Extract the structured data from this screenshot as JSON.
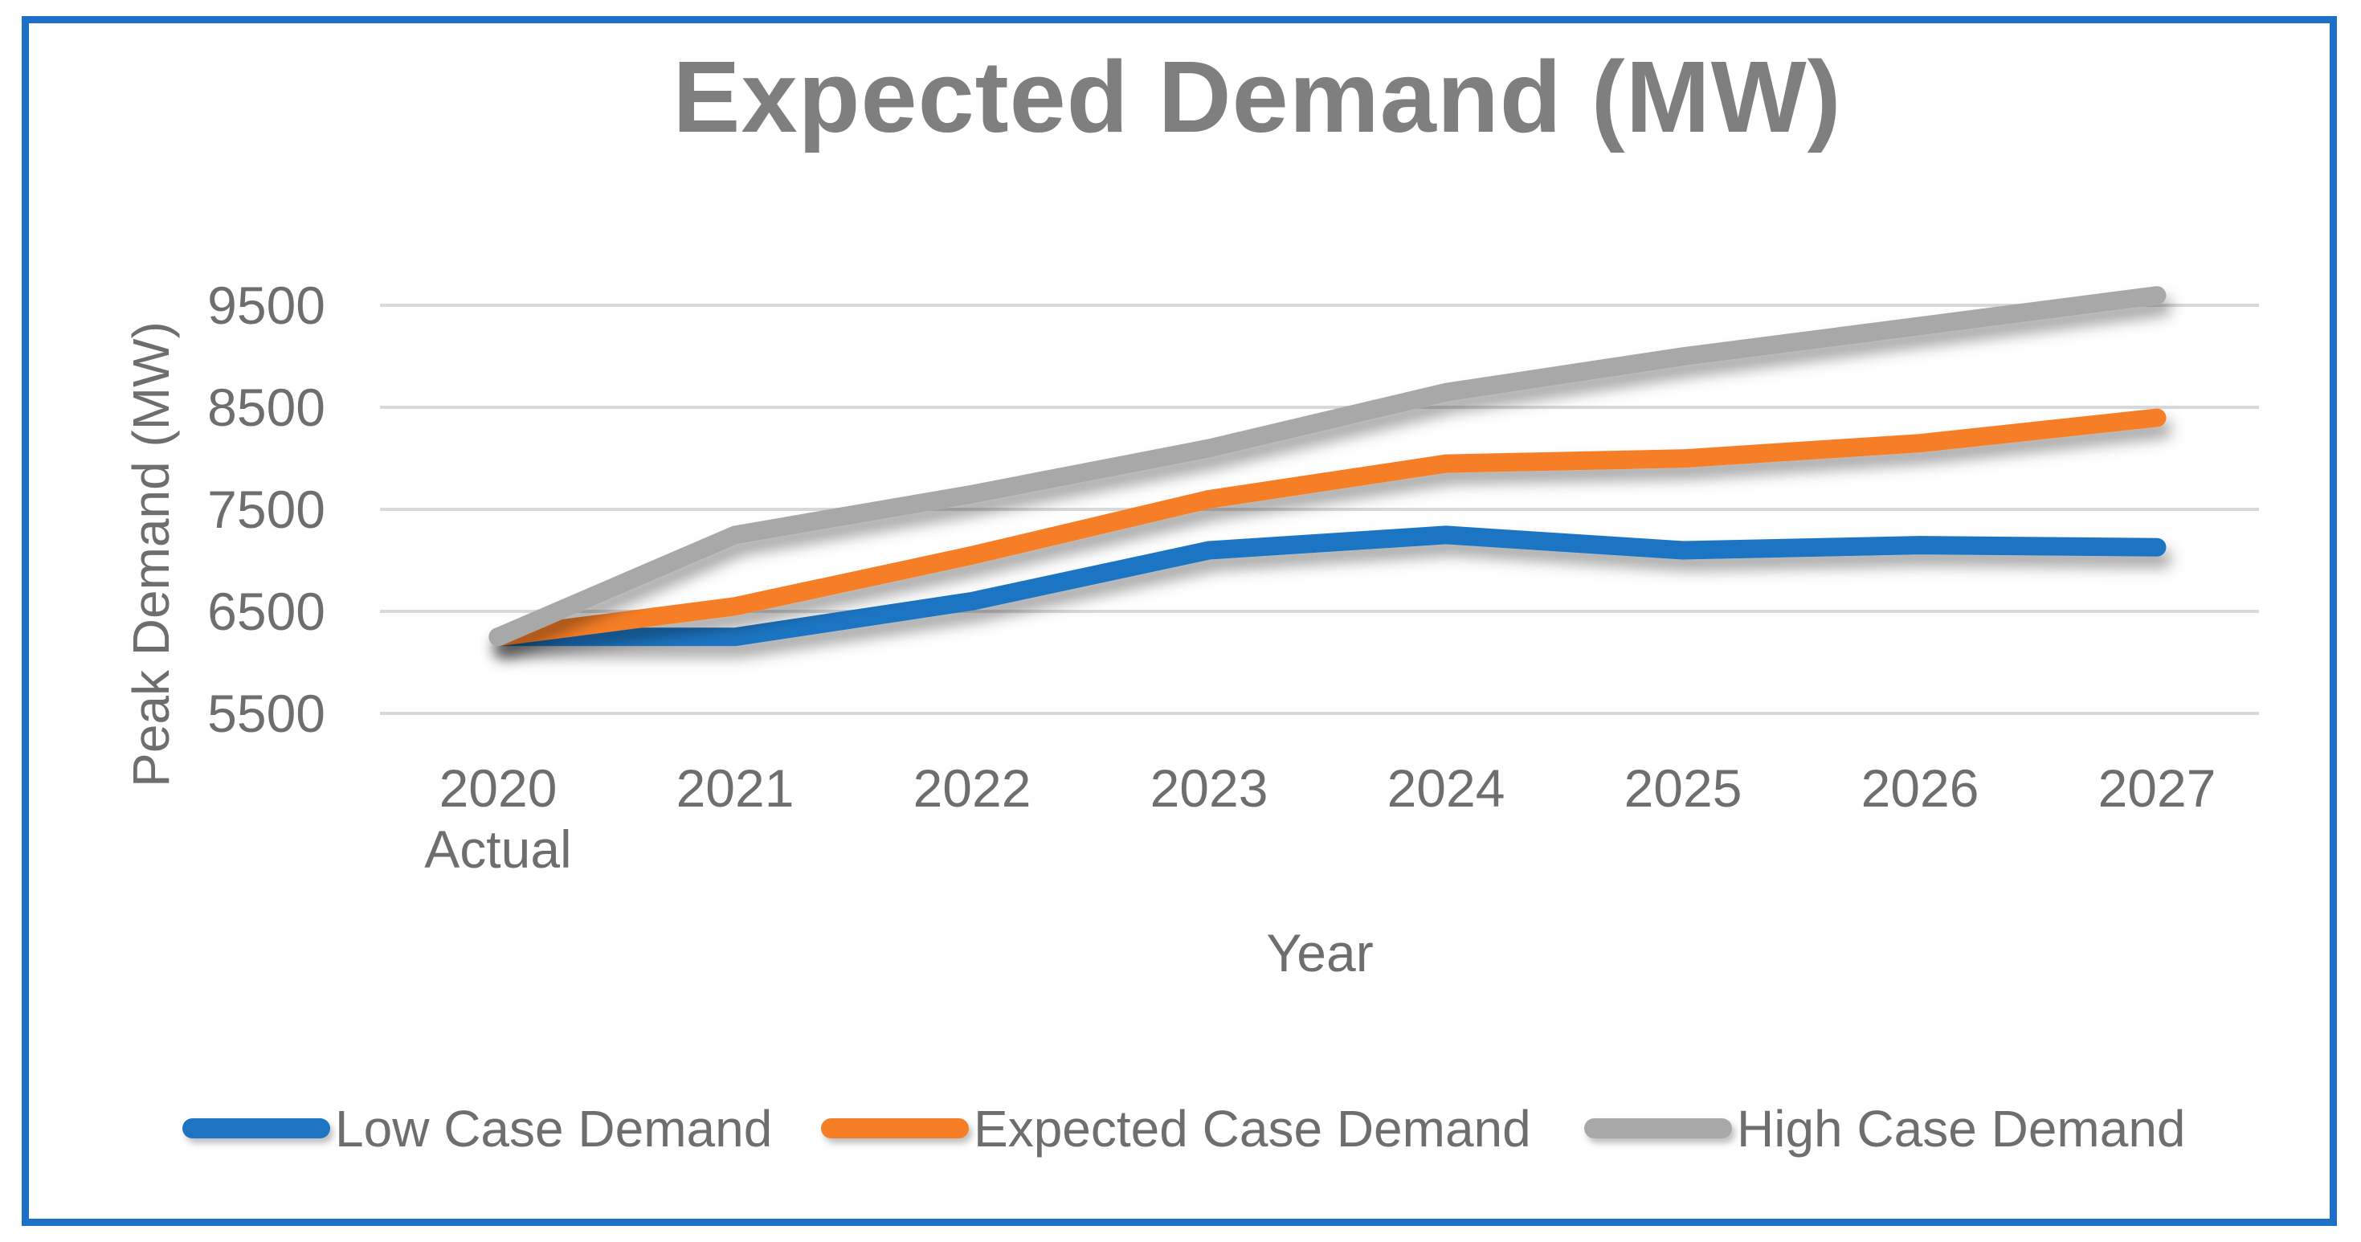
{
  "title": "Expected Demand (MW)",
  "x_axis": {
    "title": "Year",
    "tick_labels": [
      {
        "line1": "2020",
        "line2": "Actual"
      },
      {
        "line1": "2021",
        "line2": ""
      },
      {
        "line1": "2022",
        "line2": ""
      },
      {
        "line1": "2023",
        "line2": ""
      },
      {
        "line1": "2024",
        "line2": ""
      },
      {
        "line1": "2025",
        "line2": ""
      },
      {
        "line1": "2026",
        "line2": ""
      },
      {
        "line1": "2027",
        "line2": ""
      }
    ]
  },
  "y_axis": {
    "title": "Peak Demand (MW)",
    "tick_labels": [
      "9500",
      "8500",
      "7500",
      "6500",
      "5500"
    ]
  },
  "legend": [
    {
      "label": "Low Case Demand",
      "color": "#1E74C2"
    },
    {
      "label": "Expected Case Demand",
      "color": "#F67E26"
    },
    {
      "label": "High Case Demand",
      "color": "#A8A8A8"
    }
  ],
  "colors": {
    "frame_border": "#1C70C8",
    "title_text": "#7F7F7F",
    "axis_text": "#6E6E6E",
    "gridline": "#D9D9D9",
    "low_series": "#1E74C2",
    "expected_series": "#F67E26",
    "high_series": "#A8A8A8"
  },
  "chart_data": {
    "type": "line",
    "title": "Expected Demand (MW)",
    "xlabel": "Year",
    "ylabel": "Peak Demand (MW)",
    "categories": [
      "2020 Actual",
      "2021",
      "2022",
      "2023",
      "2024",
      "2025",
      "2026",
      "2027"
    ],
    "series": [
      {
        "name": "Low Case Demand",
        "color": "#1E74C2",
        "values": [
          6250,
          6250,
          6600,
          7100,
          7250,
          7100,
          7150,
          7130
        ]
      },
      {
        "name": "Expected Case Demand",
        "color": "#F67E26",
        "values": [
          6250,
          6550,
          7050,
          7600,
          7950,
          8000,
          8150,
          8400
        ]
      },
      {
        "name": "High Case Demand",
        "color": "#A8A8A8",
        "values": [
          6250,
          7250,
          7650,
          8100,
          8650,
          9000,
          9300,
          9600
        ]
      }
    ],
    "ylim": [
      5500,
      10000
    ],
    "yticks": [
      5500,
      6500,
      7500,
      8500,
      9500
    ],
    "grid": true,
    "legend_position": "bottom"
  }
}
